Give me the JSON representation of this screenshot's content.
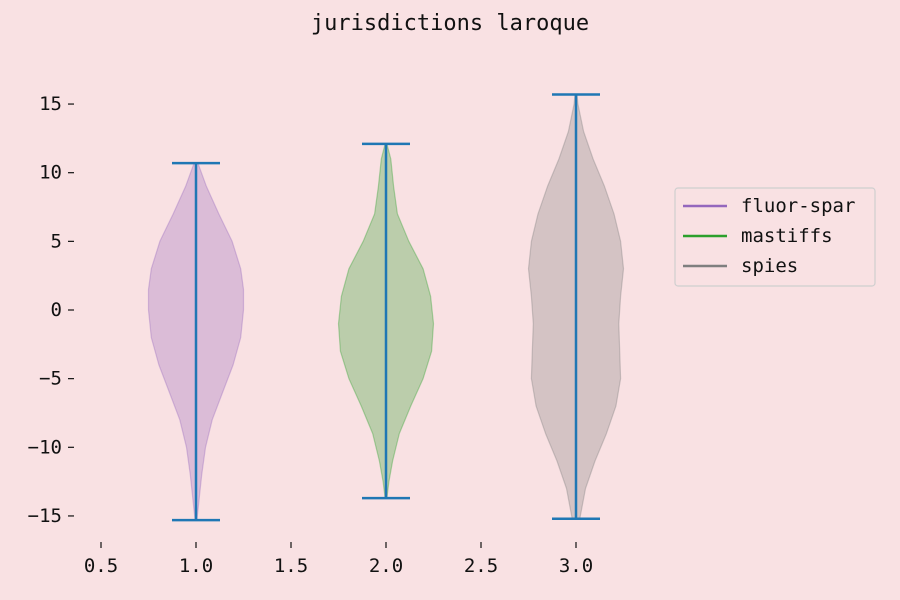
{
  "chart_data": {
    "type": "violin",
    "title": "jurisdictions laroque",
    "xlabel": "",
    "ylabel": "",
    "xlim": [
      0.45,
      3.3
    ],
    "ylim": [
      -16.5,
      18
    ],
    "x_ticks": [
      "0.5",
      "1.0",
      "1.5",
      "2.0",
      "2.5",
      "3.0"
    ],
    "x_tick_values": [
      0.5,
      1.0,
      1.5,
      2.0,
      2.5,
      3.0
    ],
    "y_ticks": [
      "−15",
      "−10",
      "−5",
      "0",
      "5",
      "10",
      "15"
    ],
    "y_tick_values": [
      -15,
      -10,
      -5,
      0,
      5,
      10,
      15
    ],
    "legend_position": "right",
    "grid": false,
    "series": [
      {
        "name": "fluor-spar",
        "position": 1.0,
        "color": "#9467bd",
        "min": -15.3,
        "max": 10.7,
        "profile": [
          [
            -15.3,
            0.005
          ],
          [
            -14.0,
            0.015
          ],
          [
            -12.0,
            0.03
          ],
          [
            -10.0,
            0.05
          ],
          [
            -8.0,
            0.085
          ],
          [
            -6.0,
            0.14
          ],
          [
            -4.0,
            0.195
          ],
          [
            -2.0,
            0.235
          ],
          [
            0.0,
            0.25
          ],
          [
            1.5,
            0.25
          ],
          [
            3.0,
            0.235
          ],
          [
            5.0,
            0.19
          ],
          [
            7.0,
            0.12
          ],
          [
            9.0,
            0.055
          ],
          [
            10.7,
            0.01
          ]
        ]
      },
      {
        "name": "mastiffs",
        "position": 2.0,
        "color": "#2ca02c",
        "min": -13.7,
        "max": 12.1,
        "profile": [
          [
            -13.7,
            0.005
          ],
          [
            -12.5,
            0.015
          ],
          [
            -11.0,
            0.035
          ],
          [
            -9.0,
            0.07
          ],
          [
            -7.0,
            0.13
          ],
          [
            -5.0,
            0.195
          ],
          [
            -3.0,
            0.24
          ],
          [
            -1.0,
            0.25
          ],
          [
            1.0,
            0.235
          ],
          [
            3.0,
            0.195
          ],
          [
            5.0,
            0.12
          ],
          [
            7.0,
            0.06
          ],
          [
            9.0,
            0.04
          ],
          [
            11.0,
            0.025
          ],
          [
            12.1,
            0.005
          ]
        ]
      },
      {
        "name": "spies",
        "position": 3.0,
        "color": "#7f7f7f",
        "min": -15.2,
        "max": 15.7,
        "profile": [
          [
            -15.2,
            0.02
          ],
          [
            -13.0,
            0.05
          ],
          [
            -11.0,
            0.1
          ],
          [
            -9.0,
            0.16
          ],
          [
            -7.0,
            0.21
          ],
          [
            -5.0,
            0.235
          ],
          [
            -3.0,
            0.23
          ],
          [
            -1.0,
            0.225
          ],
          [
            1.0,
            0.235
          ],
          [
            3.0,
            0.25
          ],
          [
            5.0,
            0.235
          ],
          [
            7.0,
            0.2
          ],
          [
            9.0,
            0.15
          ],
          [
            11.0,
            0.09
          ],
          [
            13.0,
            0.04
          ],
          [
            15.0,
            0.01
          ],
          [
            15.7,
            0.005
          ]
        ]
      }
    ],
    "whisker_color": "#1f77b4"
  }
}
